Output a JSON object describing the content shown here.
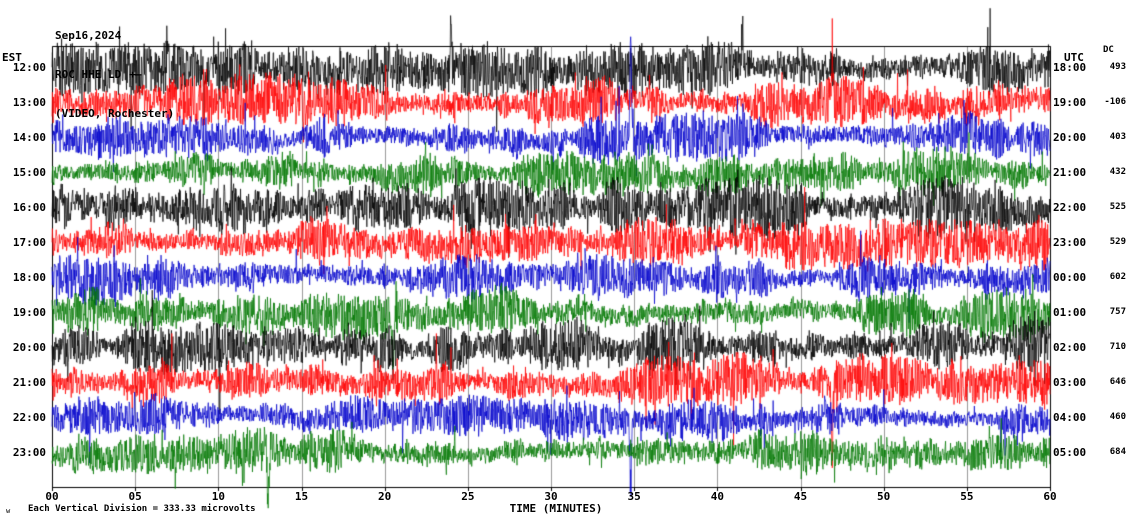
{
  "header": {
    "date": "Sep16,2024",
    "station": "ROC HHE LD",
    "location": "(VIDEO, Rochester)",
    "scale_marker": "+—"
  },
  "axes": {
    "left_label": "EST",
    "right_label": "UTC",
    "dc_label": "DC",
    "x_label": "TIME (MINUTES)",
    "x_ticks": [
      "00",
      "05",
      "10",
      "15",
      "20",
      "25",
      "30",
      "35",
      "40",
      "45",
      "50",
      "55",
      "60"
    ]
  },
  "footer": {
    "watermark": "w",
    "scale_note": "Each Vertical Division =  333.33 microvolts"
  },
  "chart_data": {
    "type": "line",
    "title": "ROC HHE LD helicorder record, Sep16,2024",
    "x_range_minutes": [
      0,
      60
    ],
    "x_tick_interval_minutes": 5,
    "microvolts_per_division": 333.33,
    "trace_color_cycle": [
      "#000000",
      "#ff0000",
      "#0000cc",
      "#007700"
    ],
    "rows": [
      {
        "est": "12:00",
        "utc": "18:00",
        "dc": "493",
        "color": "#000000",
        "amp": 16,
        "spikes": [
          {
            "m": 24.0,
            "a": 58,
            "d": -1
          },
          {
            "m": 41.5,
            "a": 50,
            "d": -1
          }
        ]
      },
      {
        "est": "13:00",
        "utc": "19:00",
        "dc": "-106",
        "color": "#ff0000",
        "amp": 15,
        "spikes": [
          {
            "m": 46.9,
            "a": 95,
            "d": -1
          }
        ]
      },
      {
        "est": "14:00",
        "utc": "20:00",
        "dc": "403",
        "color": "#0000cc",
        "amp": 14,
        "spikes": [
          {
            "m": 34.8,
            "a": 132,
            "d": -1
          }
        ]
      },
      {
        "est": "15:00",
        "utc": "21:00",
        "dc": "432",
        "color": "#007700",
        "amp": 13,
        "spikes": []
      },
      {
        "est": "16:00",
        "utc": "22:00",
        "dc": "525",
        "color": "#000000",
        "amp": 18,
        "spikes": []
      },
      {
        "est": "17:00",
        "utc": "23:00",
        "dc": "529",
        "color": "#ff0000",
        "amp": 14,
        "spikes": []
      },
      {
        "est": "18:00",
        "utc": "00:00",
        "dc": "602",
        "color": "#0000cc",
        "amp": 14,
        "spikes": []
      },
      {
        "est": "19:00",
        "utc": "01:00",
        "dc": "757",
        "color": "#007700",
        "amp": 15,
        "spikes": [
          {
            "m": 20.5,
            "a": 55,
            "d": 1
          }
        ]
      },
      {
        "est": "20:00",
        "utc": "02:00",
        "dc": "710",
        "color": "#000000",
        "amp": 16,
        "spikes": []
      },
      {
        "est": "21:00",
        "utc": "03:00",
        "dc": "646",
        "color": "#ff0000",
        "amp": 15,
        "spikes": [
          {
            "m": 46.9,
            "a": 115,
            "d": 1
          }
        ]
      },
      {
        "est": "22:00",
        "utc": "04:00",
        "dc": "460",
        "color": "#0000cc",
        "amp": 12,
        "spikes": [
          {
            "m": 34.8,
            "a": 85,
            "d": 1
          }
        ]
      },
      {
        "est": "23:00",
        "utc": "05:00",
        "dc": "684",
        "color": "#007700",
        "amp": 13,
        "spikes": [
          {
            "m": 13.0,
            "a": 65,
            "d": 1
          }
        ]
      }
    ]
  }
}
